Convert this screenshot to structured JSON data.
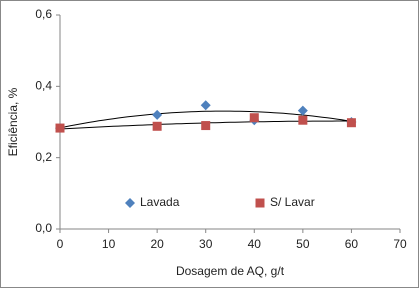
{
  "chart_data": {
    "type": "scatter",
    "x_label": "Dosagem de AQ, g/t",
    "y_label": "Eficiência, %",
    "x": [
      0,
      20,
      30,
      40,
      50,
      60
    ],
    "series": [
      {
        "name": "Lavada",
        "color": "#4f81bd",
        "marker": "diamond",
        "values": [
          0.283,
          0.32,
          0.347,
          0.305,
          0.332,
          0.3
        ]
      },
      {
        "name": "S/ Lavar",
        "color": "#c0504d",
        "marker": "square",
        "values": [
          0.283,
          0.288,
          0.29,
          0.312,
          0.305,
          0.298
        ]
      }
    ],
    "trendline": "polynomial-2",
    "xlim": [
      0,
      70
    ],
    "xticks": [
      0,
      10,
      20,
      30,
      40,
      50,
      60,
      70
    ],
    "ylim": [
      0,
      0.6
    ],
    "yticks": [
      {
        "value": 0,
        "label": "0,0"
      },
      {
        "value": 0.2,
        "label": "0,2"
      },
      {
        "value": 0.4,
        "label": "0,4"
      },
      {
        "value": 0.6,
        "label": "0,6"
      }
    ],
    "grid": false,
    "legend": "inside-bottom"
  }
}
